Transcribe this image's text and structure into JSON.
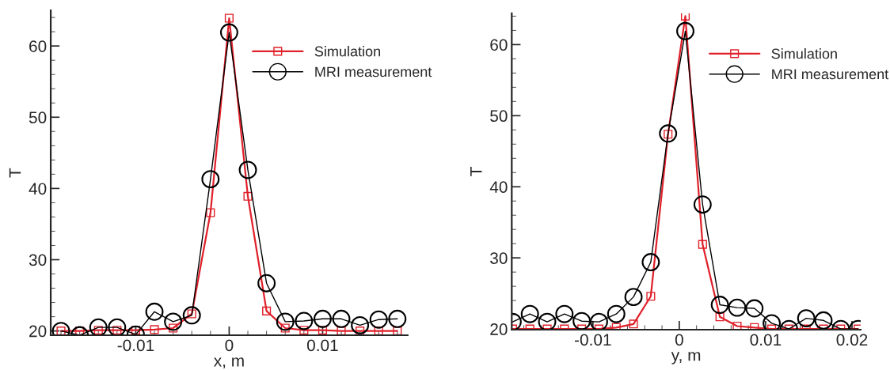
{
  "chart_data": [
    {
      "type": "line",
      "xlabel": "x, m",
      "ylabel": "T",
      "xlim": [
        -0.0191,
        0.0191
      ],
      "ylim": [
        19.4,
        65
      ],
      "xticks": [
        -0.01,
        0,
        0.01
      ],
      "yticks": [
        20,
        30,
        40,
        50,
        60
      ],
      "legend": "top right",
      "grid": false,
      "series": [
        {
          "name": "Simulation",
          "color": "#e0202a",
          "marker": "square",
          "x": [
            -0.018,
            -0.016,
            -0.014,
            -0.012,
            -0.01,
            -0.008,
            -0.006,
            -0.004,
            -0.002,
            0,
            0.002,
            0.004,
            0.006,
            0.008,
            0.01,
            0.012,
            0.014,
            0.016,
            0.018
          ],
          "values": [
            20.0,
            20.0,
            20.1,
            20.1,
            20.1,
            20.2,
            20.4,
            22.4,
            36.6,
            63.9,
            38.9,
            22.8,
            20.4,
            20.1,
            20.1,
            20.0,
            20.0,
            20.0,
            20.0
          ]
        },
        {
          "name": "MRI measurement",
          "color": "#000000",
          "marker": "circle",
          "x": [
            -0.018,
            -0.016,
            -0.014,
            -0.012,
            -0.01,
            -0.008,
            -0.006,
            -0.004,
            -0.002,
            0,
            0.002,
            0.004,
            0.006,
            0.008,
            0.01,
            0.012,
            0.014,
            0.016,
            0.018
          ],
          "values": [
            20.0,
            19.4,
            20.5,
            20.5,
            19.5,
            22.7,
            21.3,
            22.2,
            41.3,
            61.9,
            42.6,
            26.7,
            21.3,
            21.4,
            21.7,
            21.7,
            20.8,
            21.6,
            21.7
          ]
        }
      ]
    },
    {
      "type": "line",
      "xlabel": "y, m",
      "ylabel": "T",
      "xlim": [
        -0.0194,
        0.021
      ],
      "ylim": [
        19.9,
        64.4
      ],
      "xticks": [
        -0.01,
        0,
        0.01,
        0.02
      ],
      "yticks": [
        20,
        30,
        40,
        50,
        60
      ],
      "legend": "top right",
      "grid": false,
      "series": [
        {
          "name": "Simulation",
          "color": "#e0202a",
          "marker": "square",
          "x": [
            -0.0193,
            -0.0173,
            -0.0153,
            -0.0133,
            -0.0113,
            -0.0093,
            -0.0073,
            -0.0053,
            -0.0033,
            -0.0013,
            0.0007,
            0.0027,
            0.0047,
            0.0067,
            0.0087,
            0.0107,
            0.0127,
            0.0147,
            0.0167,
            0.0187,
            0.0207
          ],
          "values": [
            20.0,
            20.0,
            20.0,
            20.0,
            20.0,
            20.0,
            20.2,
            20.7,
            24.6,
            47.4,
            64.0,
            31.9,
            21.7,
            20.4,
            20.2,
            20.0,
            20.0,
            20.0,
            20.0,
            20.0,
            20.0
          ]
        },
        {
          "name": "MRI measurement",
          "color": "#000000",
          "marker": "circle",
          "x": [
            -0.0193,
            -0.0173,
            -0.0153,
            -0.0133,
            -0.0113,
            -0.0093,
            -0.0073,
            -0.0053,
            -0.0033,
            -0.0013,
            0.0007,
            0.0027,
            0.0047,
            0.0067,
            0.0087,
            0.0107,
            0.0127,
            0.0147,
            0.0167,
            0.0187,
            0.0207
          ],
          "values": [
            21.0,
            22.1,
            21.0,
            22.1,
            21.1,
            21.0,
            22.1,
            24.5,
            29.4,
            47.5,
            61.9,
            37.5,
            23.4,
            23.0,
            22.9,
            20.8,
            20.0,
            21.5,
            21.2,
            20.0,
            20.0
          ]
        }
      ]
    }
  ]
}
